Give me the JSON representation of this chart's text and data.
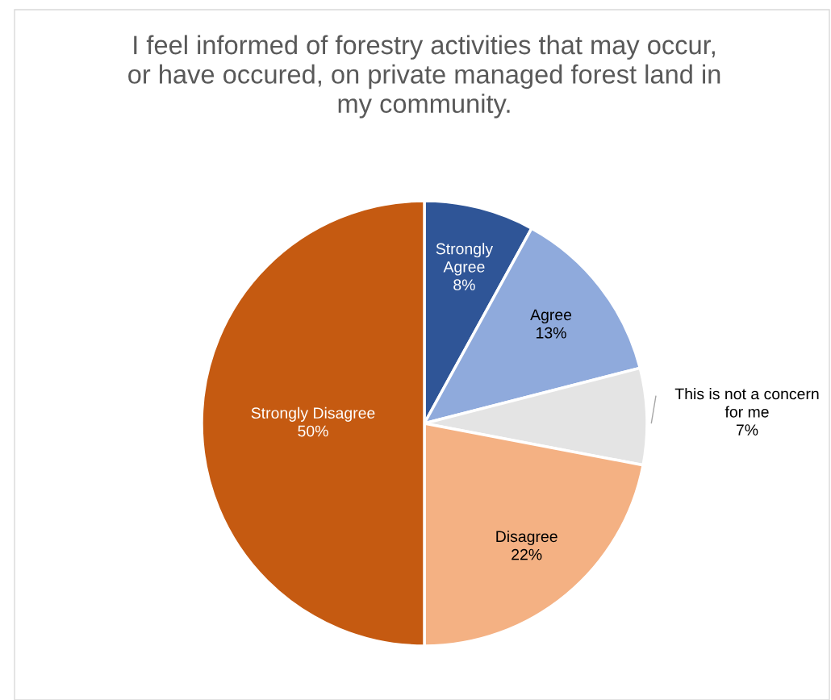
{
  "chart_data": {
    "type": "pie",
    "title": "I feel informed of forestry activities that may occur,\nor have occured, on private managed forest land in\nmy community.",
    "categories": [
      "Strongly Agree",
      "Agree",
      "This is not a concern for me",
      "Disagree",
      "Strongly Disagree"
    ],
    "values": [
      8,
      13,
      7,
      22,
      50
    ],
    "value_labels": [
      "8%",
      "13%",
      "7%",
      "22%",
      "50%"
    ],
    "colors": [
      "#2f5597",
      "#8faadc",
      "#e4e4e4",
      "#f4b183",
      "#c55a11"
    ],
    "legend": false
  }
}
